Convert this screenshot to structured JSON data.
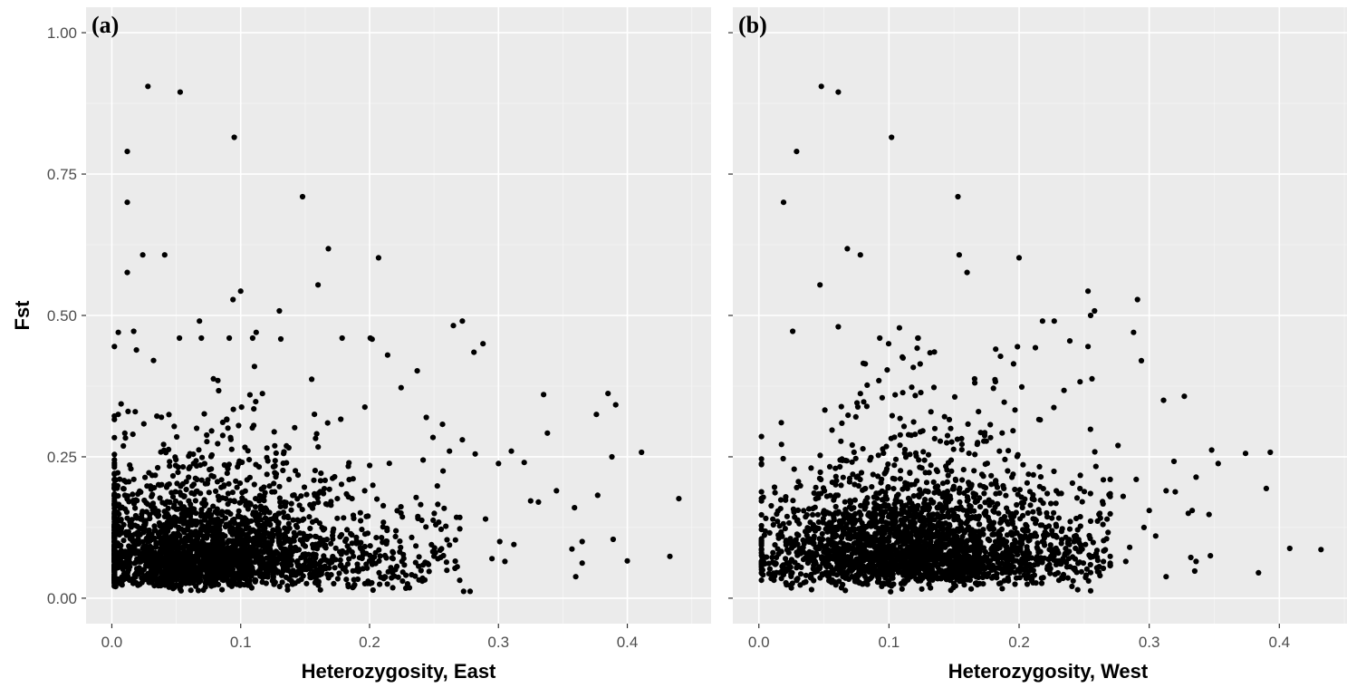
{
  "chart_data": [
    {
      "type": "scatter",
      "tag": "(a)",
      "xlabel": "Heterozygosity, East",
      "ylabel": "Fst",
      "xlim": [
        -0.02,
        0.465
      ],
      "ylim": [
        -0.045,
        1.045
      ],
      "x_ticks": [
        0.0,
        0.1,
        0.2,
        0.3,
        0.4
      ],
      "x_tick_labels": [
        "0.0",
        "0.1",
        "0.2",
        "0.3",
        "0.4"
      ],
      "y_ticks": [
        0.0,
        0.25,
        0.5,
        0.75,
        1.0
      ],
      "y_tick_labels": [
        "0.00",
        "0.25",
        "0.50",
        "0.75",
        "1.00"
      ],
      "grid": true,
      "point_color": "#000000",
      "outliers": [
        [
          0.028,
          0.905
        ],
        [
          0.053,
          0.895
        ],
        [
          0.095,
          0.815
        ],
        [
          0.012,
          0.79
        ],
        [
          0.148,
          0.71
        ],
        [
          0.012,
          0.7
        ],
        [
          0.168,
          0.618
        ],
        [
          0.024,
          0.607
        ],
        [
          0.041,
          0.607
        ],
        [
          0.207,
          0.602
        ],
        [
          0.012,
          0.576
        ],
        [
          0.16,
          0.554
        ],
        [
          0.1,
          0.543
        ],
        [
          0.094,
          0.528
        ],
        [
          0.13,
          0.508
        ],
        [
          0.068,
          0.49
        ],
        [
          0.272,
          0.49
        ],
        [
          0.265,
          0.482
        ],
        [
          0.005,
          0.47
        ],
        [
          0.017,
          0.472
        ],
        [
          0.112,
          0.47
        ],
        [
          0.202,
          0.458
        ],
        [
          0.288,
          0.45
        ],
        [
          0.281,
          0.435
        ],
        [
          0.214,
          0.43
        ],
        [
          0.237,
          0.402
        ],
        [
          0.335,
          0.36
        ],
        [
          0.385,
          0.362
        ],
        [
          0.391,
          0.342
        ],
        [
          0.376,
          0.325
        ],
        [
          0.338,
          0.292
        ],
        [
          0.31,
          0.26
        ],
        [
          0.411,
          0.258
        ],
        [
          0.388,
          0.25
        ],
        [
          0.32,
          0.24
        ],
        [
          0.3,
          0.238
        ],
        [
          0.44,
          0.176
        ],
        [
          0.377,
          0.182
        ],
        [
          0.359,
          0.16
        ],
        [
          0.345,
          0.19
        ],
        [
          0.331,
          0.17
        ],
        [
          0.325,
          0.172
        ],
        [
          0.365,
          0.1
        ],
        [
          0.389,
          0.104
        ],
        [
          0.357,
          0.087
        ],
        [
          0.433,
          0.074
        ],
        [
          0.4,
          0.066
        ],
        [
          0.365,
          0.062
        ],
        [
          0.36,
          0.038
        ],
        [
          0.278,
          0.012
        ],
        [
          0.273,
          0.012
        ],
        [
          0.312,
          0.095
        ],
        [
          0.301,
          0.1
        ],
        [
          0.295,
          0.07
        ],
        [
          0.29,
          0.14
        ],
        [
          0.305,
          0.065
        ],
        [
          0.282,
          0.255
        ],
        [
          0.272,
          0.28
        ],
        [
          0.262,
          0.26
        ],
        [
          0.257,
          0.225
        ]
      ],
      "bulk": {
        "count": 2600,
        "seed": 11,
        "x_range": [
          0.0,
          0.27
        ],
        "x_mode": 0.07,
        "y_floor": 0.01,
        "y_median": 0.085,
        "y_spread": 0.6
      }
    },
    {
      "type": "scatter",
      "tag": "(b)",
      "xlabel": "Heterozygosity, West",
      "ylabel": "",
      "xlim": [
        -0.02,
        0.452
      ],
      "ylim": [
        -0.045,
        1.045
      ],
      "x_ticks": [
        0.0,
        0.1,
        0.2,
        0.3,
        0.4
      ],
      "x_tick_labels": [
        "0.0",
        "0.1",
        "0.2",
        "0.3",
        "0.4"
      ],
      "y_ticks": [
        0.0,
        0.25,
        0.5,
        0.75,
        1.0
      ],
      "y_tick_labels": [],
      "grid": true,
      "point_color": "#000000",
      "outliers": [
        [
          0.048,
          0.905
        ],
        [
          0.061,
          0.895
        ],
        [
          0.102,
          0.815
        ],
        [
          0.029,
          0.79
        ],
        [
          0.153,
          0.71
        ],
        [
          0.019,
          0.7
        ],
        [
          0.068,
          0.618
        ],
        [
          0.154,
          0.607
        ],
        [
          0.078,
          0.607
        ],
        [
          0.2,
          0.602
        ],
        [
          0.16,
          0.576
        ],
        [
          0.047,
          0.554
        ],
        [
          0.253,
          0.543
        ],
        [
          0.291,
          0.528
        ],
        [
          0.258,
          0.508
        ],
        [
          0.255,
          0.5
        ],
        [
          0.218,
          0.49
        ],
        [
          0.227,
          0.49
        ],
        [
          0.061,
          0.48
        ],
        [
          0.026,
          0.472
        ],
        [
          0.108,
          0.478
        ],
        [
          0.288,
          0.47
        ],
        [
          0.239,
          0.455
        ],
        [
          0.253,
          0.445
        ],
        [
          0.294,
          0.42
        ],
        [
          0.256,
          0.388
        ],
        [
          0.311,
          0.35
        ],
        [
          0.327,
          0.357
        ],
        [
          0.348,
          0.262
        ],
        [
          0.374,
          0.256
        ],
        [
          0.393,
          0.258
        ],
        [
          0.353,
          0.238
        ],
        [
          0.336,
          0.214
        ],
        [
          0.319,
          0.242
        ],
        [
          0.39,
          0.194
        ],
        [
          0.313,
          0.19
        ],
        [
          0.32,
          0.188
        ],
        [
          0.333,
          0.155
        ],
        [
          0.346,
          0.148
        ],
        [
          0.33,
          0.15
        ],
        [
          0.3,
          0.155
        ],
        [
          0.432,
          0.086
        ],
        [
          0.408,
          0.088
        ],
        [
          0.347,
          0.075
        ],
        [
          0.332,
          0.072
        ],
        [
          0.336,
          0.065
        ],
        [
          0.335,
          0.048
        ],
        [
          0.384,
          0.045
        ],
        [
          0.313,
          0.038
        ],
        [
          0.296,
          0.125
        ],
        [
          0.285,
          0.09
        ],
        [
          0.282,
          0.065
        ],
        [
          0.276,
          0.27
        ],
        [
          0.27,
          0.21
        ],
        [
          0.255,
          0.013
        ],
        [
          0.245,
          0.015
        ],
        [
          0.305,
          0.11
        ],
        [
          0.29,
          0.21
        ],
        [
          0.262,
          0.15
        ],
        [
          0.28,
          0.18
        ]
      ],
      "bulk": {
        "count": 2600,
        "seed": 29,
        "x_range": [
          0.0,
          0.27
        ],
        "x_mode": 0.12,
        "y_floor": 0.01,
        "y_median": 0.095,
        "y_spread": 0.58
      }
    }
  ]
}
